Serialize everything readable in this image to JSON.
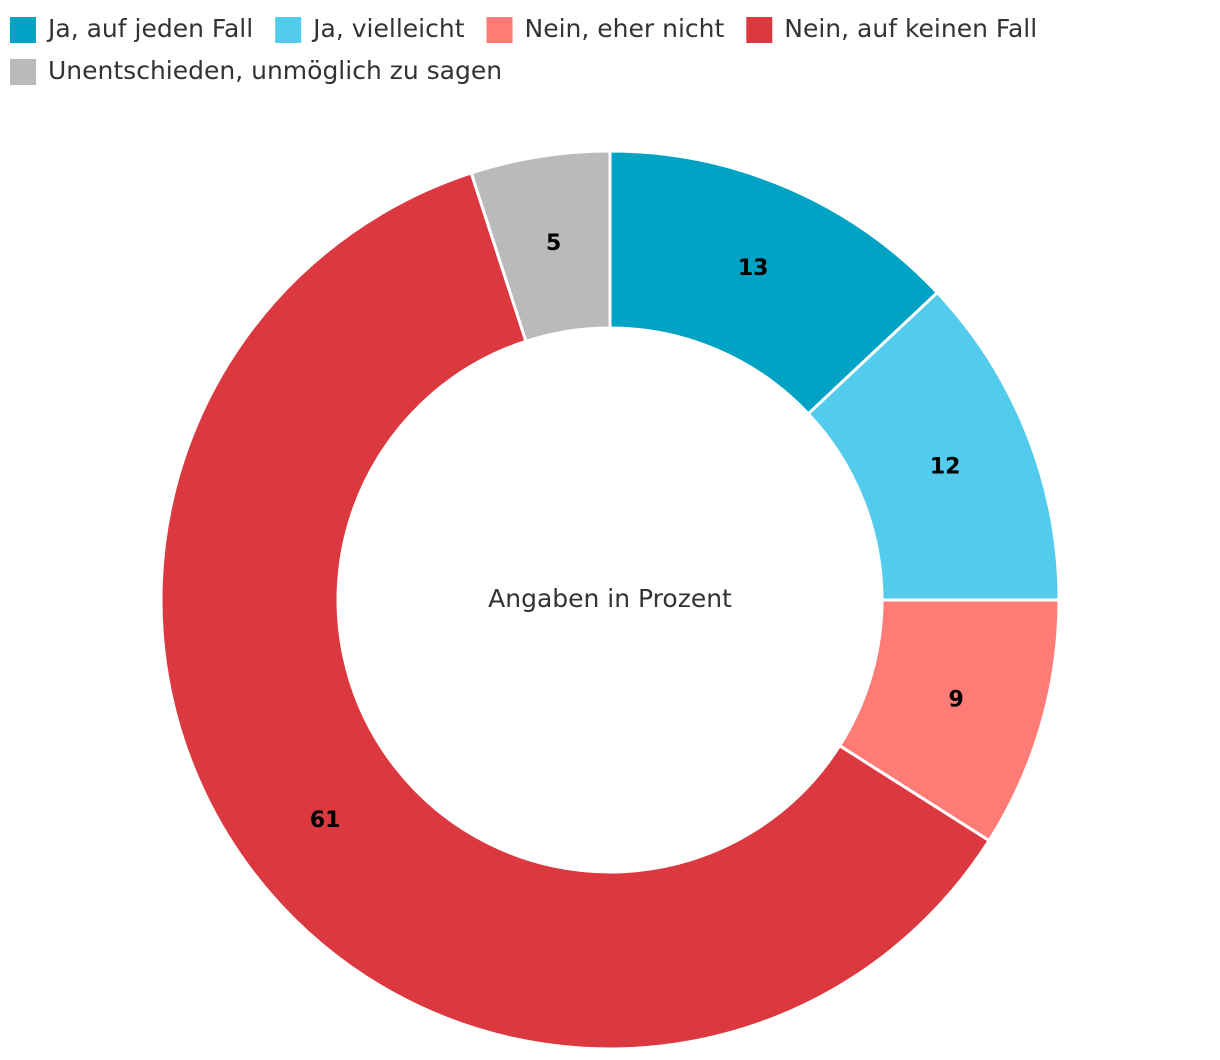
{
  "chart_data": {
    "type": "donut",
    "categories": [
      "Ja, auf jeden Fall",
      "Ja, vielleicht",
      "Nein, eher nicht",
      "Nein, auf keinen Fall",
      "Unentschieden, unmöglich zu sagen"
    ],
    "values": [
      13,
      12,
      9,
      61,
      5
    ],
    "colors": [
      "#00a3c4",
      "#53cbed",
      "#ff7b76",
      "#db3840",
      "#bababa"
    ],
    "annotation": "Angaben in Prozent"
  }
}
